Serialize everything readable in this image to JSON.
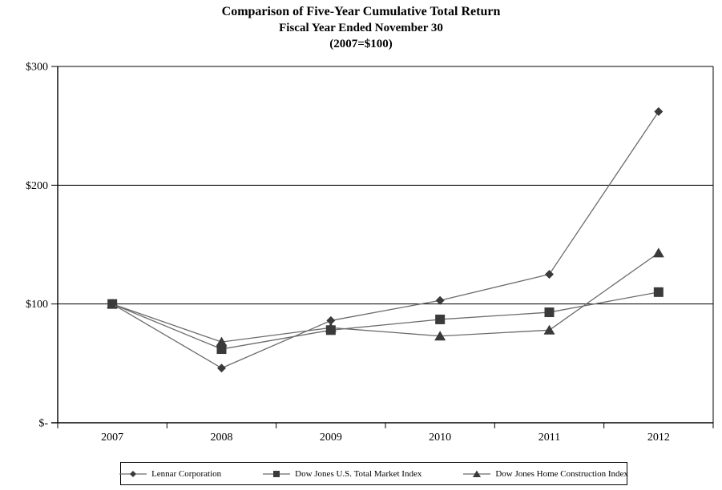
{
  "title": {
    "line1": "Comparison of Five-Year Cumulative Total Return",
    "line2": "Fiscal Year Ended November 30",
    "line3": "(2007=$100)"
  },
  "chart_data": {
    "type": "line",
    "title": "Comparison of Five-Year Cumulative Total Return",
    "subtitle": "Fiscal Year Ended November 30 (2007=$100)",
    "categories": [
      "2007",
      "2008",
      "2009",
      "2010",
      "2011",
      "2012"
    ],
    "series": [
      {
        "name": "Lennar Corporation",
        "marker": "diamond",
        "values": [
          100,
          46,
          86,
          103,
          125,
          262
        ]
      },
      {
        "name": "Dow Jones U.S. Total Market Index",
        "marker": "square",
        "values": [
          100,
          62,
          78,
          87,
          93,
          110
        ]
      },
      {
        "name": "Dow Jones Home Construction Index",
        "marker": "triangle",
        "values": [
          100,
          68,
          80,
          73,
          78,
          143
        ]
      }
    ],
    "xlabel": "",
    "ylabel": "",
    "ylim": [
      0,
      300
    ],
    "ytick_values": [
      0,
      100,
      200,
      300
    ],
    "ytick_labels": [
      "$-",
      "$100",
      "$200",
      "$300"
    ],
    "grid": "horizontal",
    "legend_position": "bottom",
    "colors": {
      "line": "#6b6b6b",
      "marker": "#3a3a3a",
      "axis": "#000000",
      "background": "#ffffff"
    }
  }
}
